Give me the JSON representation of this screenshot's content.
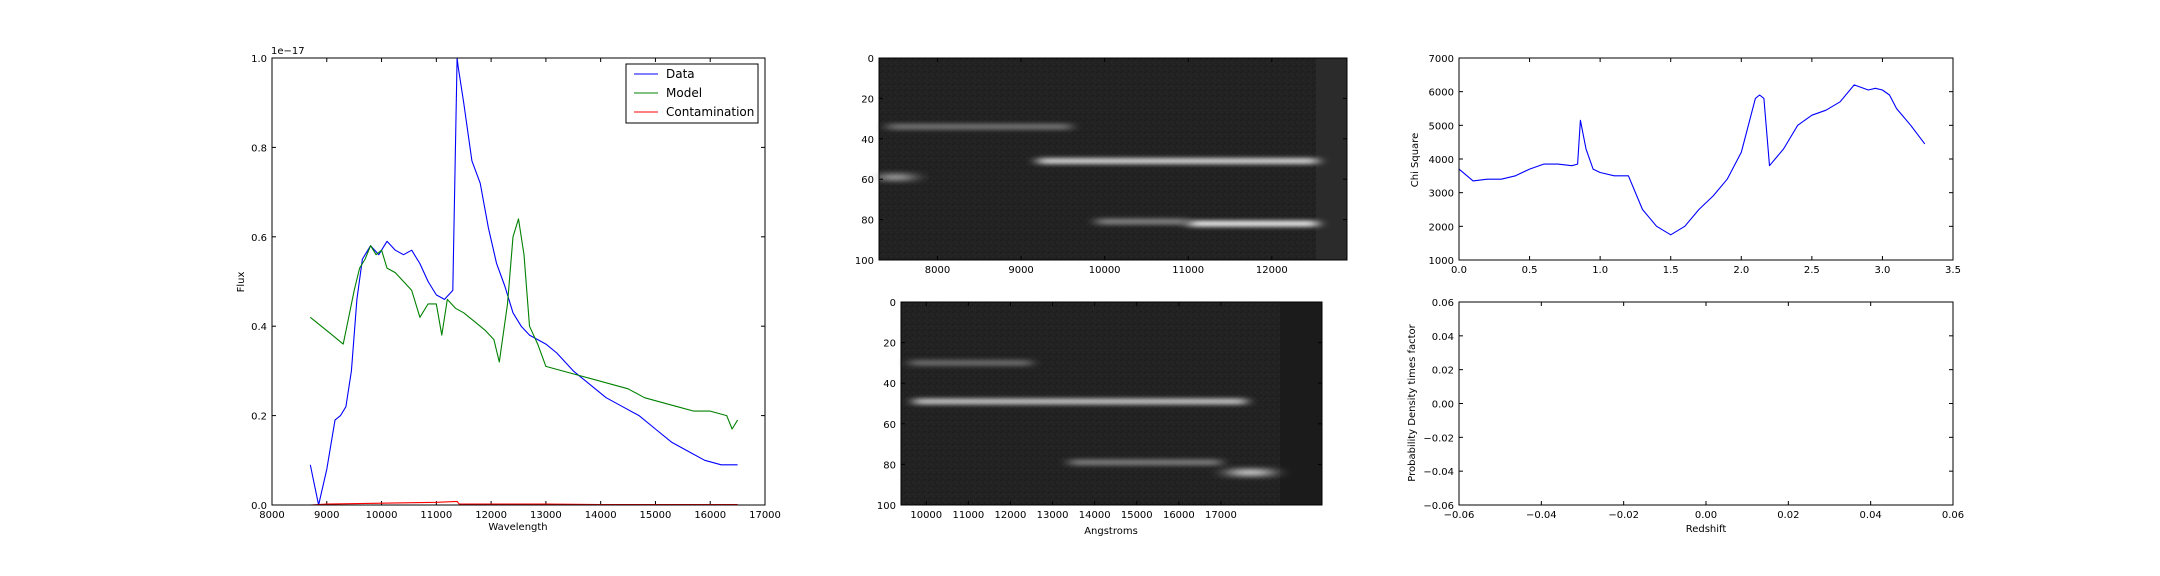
{
  "chart_data": [
    {
      "id": "spectrum",
      "type": "line",
      "title": "",
      "xlabel": "Wavelength",
      "ylabel": "Flux",
      "offset_text": "1e−17",
      "xlim": [
        8000,
        17000
      ],
      "ylim": [
        0.0,
        1.0
      ],
      "xticks": [
        8000,
        9000,
        10000,
        11000,
        12000,
        13000,
        14000,
        15000,
        16000,
        17000
      ],
      "yticks": [
        "0.0",
        "0.2",
        "0.4",
        "0.6",
        "0.8",
        "1.0"
      ],
      "legend": {
        "location": "upper right",
        "entries": [
          "Data",
          "Model",
          "Contamination"
        ]
      },
      "series": [
        {
          "name": "Data",
          "color": "#0000ff",
          "x": [
            8700,
            8850,
            9000,
            9150,
            9250,
            9350,
            9450,
            9550,
            9650,
            9800,
            9950,
            10100,
            10250,
            10400,
            10550,
            10700,
            10850,
            11000,
            11150,
            11300,
            11380,
            11400,
            11500,
            11650,
            11800,
            11950,
            12100,
            12250,
            12400,
            12550,
            12700,
            12850,
            13000,
            13200,
            13500,
            13800,
            14100,
            14400,
            14700,
            15000,
            15300,
            15600,
            15900,
            16200,
            16500
          ],
          "y": [
            0.09,
            0.0,
            0.08,
            0.19,
            0.2,
            0.22,
            0.3,
            0.46,
            0.55,
            0.58,
            0.56,
            0.59,
            0.57,
            0.56,
            0.57,
            0.54,
            0.5,
            0.47,
            0.46,
            0.48,
            1.0,
            0.98,
            0.9,
            0.77,
            0.72,
            0.62,
            0.54,
            0.49,
            0.43,
            0.4,
            0.38,
            0.37,
            0.36,
            0.34,
            0.3,
            0.27,
            0.24,
            0.22,
            0.2,
            0.17,
            0.14,
            0.12,
            0.1,
            0.09,
            0.09
          ]
        },
        {
          "name": "Model",
          "color": "#008000",
          "x": [
            8700,
            8900,
            9100,
            9200,
            9300,
            9400,
            9500,
            9600,
            9700,
            9800,
            9900,
            10000,
            10100,
            10250,
            10400,
            10550,
            10700,
            10850,
            11000,
            11100,
            11200,
            11350,
            11500,
            11700,
            11900,
            12050,
            12150,
            12300,
            12400,
            12500,
            12600,
            12700,
            12850,
            13000,
            13300,
            13600,
            13900,
            14200,
            14500,
            14800,
            15100,
            15400,
            15700,
            16000,
            16300,
            16400,
            16500
          ],
          "y": [
            0.42,
            0.4,
            0.38,
            0.37,
            0.36,
            0.42,
            0.48,
            0.53,
            0.55,
            0.58,
            0.56,
            0.57,
            0.53,
            0.52,
            0.5,
            0.48,
            0.42,
            0.45,
            0.45,
            0.38,
            0.46,
            0.44,
            0.43,
            0.41,
            0.39,
            0.37,
            0.32,
            0.45,
            0.6,
            0.64,
            0.56,
            0.4,
            0.36,
            0.31,
            0.3,
            0.29,
            0.28,
            0.27,
            0.26,
            0.24,
            0.23,
            0.22,
            0.21,
            0.21,
            0.2,
            0.17,
            0.19
          ]
        },
        {
          "name": "Contamination",
          "color": "#ff0000",
          "x": [
            8700,
            9000,
            10000,
            11000,
            11380,
            11420,
            12000,
            13000,
            14000,
            15000,
            16000,
            16500
          ],
          "y": [
            0.0,
            0.002,
            0.004,
            0.006,
            0.008,
            0.002,
            0.002,
            0.002,
            0.001,
            0.001,
            0.001,
            0.001
          ]
        }
      ]
    },
    {
      "id": "image-top",
      "type": "heatmap",
      "xticks": [
        8000,
        9000,
        10000,
        11000,
        12000
      ],
      "yticks": [
        0,
        20,
        40,
        60,
        80,
        100
      ],
      "xlim": [
        7300,
        12900
      ],
      "ylim": [
        100,
        0
      ],
      "bands": [
        {
          "y": 51,
          "x_start": 9200,
          "x_end": 12550,
          "level": 0.85
        },
        {
          "y": 82,
          "x_start": 11000,
          "x_end": 12550,
          "level": 1.0
        },
        {
          "y": 81,
          "x_start": 9900,
          "x_end": 11000,
          "level": 0.35
        },
        {
          "y": 34,
          "x_start": 7400,
          "x_end": 9600,
          "level": 0.25
        },
        {
          "y": 59,
          "x_start": 7300,
          "x_end": 7700,
          "level": 0.7
        }
      ]
    },
    {
      "id": "image-bottom",
      "type": "heatmap",
      "xlabel": "Angstroms",
      "xticks": [
        10000,
        11000,
        12000,
        13000,
        14000,
        15000,
        16000,
        17000
      ],
      "yticks": [
        0,
        20,
        40,
        60,
        80,
        100
      ],
      "xlim": [
        9400,
        19400
      ],
      "ylim": [
        100,
        0
      ],
      "bands": [
        {
          "y": 49,
          "x_start": 9700,
          "x_end": 17600,
          "level": 0.75
        },
        {
          "y": 84,
          "x_start": 17200,
          "x_end": 18200,
          "level": 1.0
        },
        {
          "y": 79,
          "x_start": 13400,
          "x_end": 17000,
          "level": 0.3
        },
        {
          "y": 30,
          "x_start": 9600,
          "x_end": 12500,
          "level": 0.2
        }
      ]
    },
    {
      "id": "chi-square",
      "type": "line",
      "title": "",
      "xlabel": "",
      "ylabel": "Chi Square",
      "xlim": [
        0.0,
        3.5
      ],
      "ylim": [
        1000,
        7000
      ],
      "xticks": [
        "0.0",
        "0.5",
        "1.0",
        "1.5",
        "2.0",
        "2.5",
        "3.0",
        "3.5"
      ],
      "yticks": [
        "1000",
        "2000",
        "3000",
        "4000",
        "5000",
        "6000",
        "7000"
      ],
      "series": [
        {
          "name": "",
          "color": "#0000ff",
          "x": [
            0.0,
            0.1,
            0.2,
            0.3,
            0.4,
            0.5,
            0.6,
            0.7,
            0.8,
            0.84,
            0.86,
            0.9,
            0.95,
            1.0,
            1.1,
            1.2,
            1.3,
            1.4,
            1.5,
            1.6,
            1.7,
            1.8,
            1.9,
            2.0,
            2.1,
            2.13,
            2.16,
            2.2,
            2.3,
            2.4,
            2.5,
            2.6,
            2.7,
            2.8,
            2.9,
            2.95,
            3.0,
            3.05,
            3.1,
            3.2,
            3.3
          ],
          "y": [
            3700,
            3350,
            3400,
            3400,
            3500,
            3700,
            3850,
            3850,
            3800,
            3850,
            5150,
            4300,
            3700,
            3600,
            3500,
            3500,
            2500,
            2000,
            1750,
            2000,
            2500,
            2900,
            3400,
            4200,
            5800,
            5900,
            5800,
            3800,
            4300,
            5000,
            5300,
            5450,
            5700,
            6200,
            6050,
            6100,
            6050,
            5900,
            5500,
            5000,
            4450
          ]
        }
      ]
    },
    {
      "id": "probability",
      "type": "line",
      "xlabel": "Redshift",
      "ylabel": "Probability Density times factor",
      "xlim": [
        -0.06,
        0.06
      ],
      "ylim": [
        -0.06,
        0.06
      ],
      "xticks": [
        "−0.06",
        "−0.04",
        "−0.02",
        "0.00",
        "0.02",
        "0.04",
        "0.06"
      ],
      "yticks": [
        "−0.06",
        "−0.04",
        "−0.02",
        "0.00",
        "0.02",
        "0.04",
        "0.06"
      ],
      "series": []
    }
  ]
}
